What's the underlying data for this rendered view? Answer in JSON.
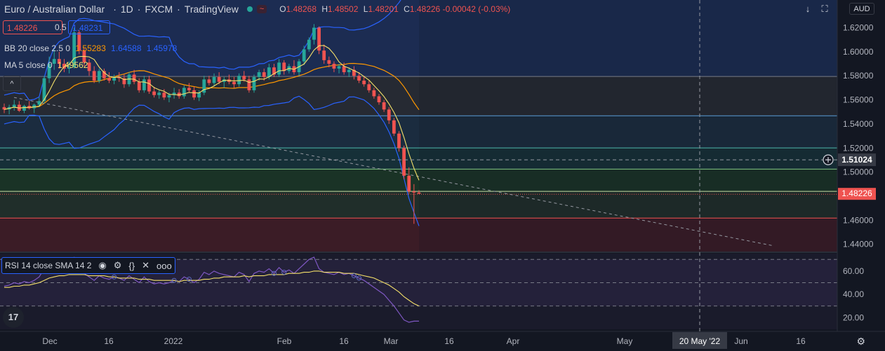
{
  "header": {
    "symbol": "Euro / Australian Dollar",
    "interval": "1D",
    "exchange": "FXCM",
    "source": "TradingView",
    "wave_icon": "~",
    "o_label": "O",
    "o_value": "1.48268",
    "h_label": "H",
    "h_value": "1.48502",
    "l_label": "L",
    "l_value": "1.48201",
    "c_label": "C",
    "c_value": "1.48226",
    "change": "-0.00042 (-0.03%)"
  },
  "quote": {
    "bid": "1.48226",
    "spread": "0.5",
    "ask": "1.48231"
  },
  "indicators": {
    "bb": {
      "label": "BB 20 close 2.5 0",
      "basis": "1.55283",
      "upper": "1.64588",
      "lower": "1.45978"
    },
    "ma": {
      "label": "MA 5 close 0",
      "value": "1.49562"
    },
    "rsi": {
      "label": "RSI 14 close SMA 14 2"
    }
  },
  "controls": {
    "currency": "AUD",
    "collapse": "^",
    "more": "ooo",
    "logo": "17"
  },
  "colors": {
    "up": "#26a69a",
    "down": "#ef5350",
    "bb_basis": "#ff9800",
    "bb_band": "#2962ff",
    "ma": "#f5e16a",
    "rsi": "#7e57c2",
    "rsi_ma": "#f5e16a"
  },
  "chart_data": [
    {
      "type": "candlestick",
      "x_tick_labels": [
        "Dec",
        "16",
        "2022",
        "Feb",
        "16",
        "Mar",
        "16",
        "Apr",
        "May",
        "20 May '22",
        "Jun",
        "16"
      ],
      "y_tick_labels": [
        "1.62000",
        "1.60000",
        "1.58000",
        "1.56000",
        "1.54000",
        "1.52000",
        "1.50000",
        "1.48000",
        "1.46000",
        "1.44000"
      ],
      "ylim": [
        1.434,
        1.643
      ],
      "last_price": "1.48226",
      "crosshair_price": "1.51024",
      "crosshair_date": "20 May '22",
      "horizontal_levels": [
        1.5795,
        1.5468,
        1.5201,
        1.5025,
        1.484,
        1.4618
      ],
      "zones": [
        {
          "from": 1.5795,
          "to": 1.643,
          "color": "#1c2c52"
        },
        {
          "from": 1.5468,
          "to": 1.5795,
          "color": "#262a33"
        },
        {
          "from": 1.5201,
          "to": 1.5468,
          "color": "#1b2c3f"
        },
        {
          "from": 1.5025,
          "to": 1.5201,
          "color": "#163038"
        },
        {
          "from": 1.484,
          "to": 1.5025,
          "color": "#1a3326"
        },
        {
          "from": 1.4618,
          "to": 1.484,
          "color": "#202e2a"
        },
        {
          "from": 1.434,
          "to": 1.4618,
          "color": "#3b1c26"
        }
      ],
      "trendline": [
        [
          1.562,
          1.439
        ]
      ],
      "candles": [
        [
          1.554,
          1.557,
          1.549,
          1.552
        ],
        [
          1.552,
          1.556,
          1.548,
          1.554
        ],
        [
          1.554,
          1.56,
          1.551,
          1.556
        ],
        [
          1.556,
          1.559,
          1.55,
          1.551
        ],
        [
          1.551,
          1.556,
          1.549,
          1.555
        ],
        [
          1.555,
          1.559,
          1.552,
          1.553
        ],
        [
          1.553,
          1.557,
          1.549,
          1.556
        ],
        [
          1.556,
          1.562,
          1.554,
          1.559
        ],
        [
          1.559,
          1.58,
          1.557,
          1.578
        ],
        [
          1.578,
          1.596,
          1.574,
          1.59
        ],
        [
          1.59,
          1.602,
          1.585,
          1.594
        ],
        [
          1.594,
          1.6,
          1.586,
          1.59
        ],
        [
          1.59,
          1.594,
          1.583,
          1.586
        ],
        [
          1.586,
          1.592,
          1.582,
          1.587
        ],
        [
          1.587,
          1.62,
          1.586,
          1.616
        ],
        [
          1.616,
          1.618,
          1.598,
          1.601
        ],
        [
          1.601,
          1.603,
          1.588,
          1.591
        ],
        [
          1.591,
          1.594,
          1.58,
          1.584
        ],
        [
          1.584,
          1.588,
          1.574,
          1.576
        ],
        [
          1.576,
          1.586,
          1.574,
          1.584
        ],
        [
          1.584,
          1.586,
          1.576,
          1.578
        ],
        [
          1.578,
          1.583,
          1.574,
          1.576
        ],
        [
          1.576,
          1.581,
          1.573,
          1.579
        ],
        [
          1.579,
          1.583,
          1.575,
          1.578
        ],
        [
          1.578,
          1.581,
          1.57,
          1.573
        ],
        [
          1.573,
          1.583,
          1.571,
          1.581
        ],
        [
          1.581,
          1.585,
          1.573,
          1.575
        ],
        [
          1.575,
          1.578,
          1.566,
          1.568
        ],
        [
          1.568,
          1.58,
          1.566,
          1.577
        ],
        [
          1.577,
          1.58,
          1.565,
          1.567
        ],
        [
          1.567,
          1.571,
          1.562,
          1.564
        ],
        [
          1.564,
          1.568,
          1.561,
          1.566
        ],
        [
          1.566,
          1.569,
          1.56,
          1.562
        ],
        [
          1.562,
          1.566,
          1.558,
          1.564
        ],
        [
          1.564,
          1.57,
          1.561,
          1.566
        ],
        [
          1.566,
          1.569,
          1.561,
          1.563
        ],
        [
          1.563,
          1.572,
          1.561,
          1.57
        ],
        [
          1.57,
          1.574,
          1.566,
          1.568
        ],
        [
          1.568,
          1.571,
          1.56,
          1.562
        ],
        [
          1.562,
          1.568,
          1.559,
          1.566
        ],
        [
          1.566,
          1.58,
          1.564,
          1.577
        ],
        [
          1.577,
          1.58,
          1.572,
          1.574
        ],
        [
          1.574,
          1.582,
          1.571,
          1.579
        ],
        [
          1.579,
          1.583,
          1.573,
          1.575
        ],
        [
          1.575,
          1.579,
          1.57,
          1.577
        ],
        [
          1.577,
          1.581,
          1.573,
          1.575
        ],
        [
          1.575,
          1.579,
          1.57,
          1.573
        ],
        [
          1.573,
          1.582,
          1.571,
          1.58
        ],
        [
          1.58,
          1.584,
          1.575,
          1.577
        ],
        [
          1.577,
          1.58,
          1.566,
          1.568
        ],
        [
          1.568,
          1.581,
          1.566,
          1.579
        ],
        [
          1.579,
          1.585,
          1.576,
          1.583
        ],
        [
          1.583,
          1.586,
          1.576,
          1.579
        ],
        [
          1.579,
          1.59,
          1.577,
          1.587
        ],
        [
          1.587,
          1.59,
          1.579,
          1.581
        ],
        [
          1.581,
          1.594,
          1.579,
          1.591
        ],
        [
          1.591,
          1.593,
          1.581,
          1.584
        ],
        [
          1.584,
          1.59,
          1.582,
          1.588
        ],
        [
          1.588,
          1.593,
          1.581,
          1.583
        ],
        [
          1.583,
          1.594,
          1.58,
          1.592
        ],
        [
          1.592,
          1.605,
          1.589,
          1.602
        ],
        [
          1.602,
          1.612,
          1.6,
          1.61
        ],
        [
          1.61,
          1.623,
          1.606,
          1.62
        ],
        [
          1.62,
          1.621,
          1.598,
          1.601
        ],
        [
          1.601,
          1.606,
          1.59,
          1.593
        ],
        [
          1.593,
          1.596,
          1.587,
          1.59
        ],
        [
          1.59,
          1.592,
          1.583,
          1.586
        ],
        [
          1.586,
          1.59,
          1.582,
          1.588
        ],
        [
          1.588,
          1.591,
          1.581,
          1.583
        ],
        [
          1.583,
          1.587,
          1.579,
          1.585
        ],
        [
          1.585,
          1.588,
          1.577,
          1.58
        ],
        [
          1.58,
          1.583,
          1.574,
          1.576
        ],
        [
          1.576,
          1.58,
          1.571,
          1.573
        ],
        [
          1.573,
          1.576,
          1.566,
          1.568
        ],
        [
          1.568,
          1.57,
          1.561,
          1.563
        ],
        [
          1.563,
          1.565,
          1.556,
          1.558
        ],
        [
          1.558,
          1.56,
          1.55,
          1.552
        ],
        [
          1.552,
          1.554,
          1.54,
          1.543
        ],
        [
          1.543,
          1.545,
          1.53,
          1.532
        ],
        [
          1.532,
          1.534,
          1.517,
          1.52
        ],
        [
          1.52,
          1.522,
          1.494,
          1.497
        ],
        [
          1.497,
          1.504,
          1.482,
          1.484
        ],
        [
          1.484,
          1.49,
          1.457,
          1.483
        ],
        [
          1.483,
          1.485,
          1.482,
          1.482
        ]
      ]
    },
    {
      "type": "line",
      "title": "RSI",
      "y_tick_labels": [
        "60.00",
        "40.00",
        "20.00"
      ],
      "ylim": [
        10,
        75
      ],
      "levels": [
        70,
        50,
        30
      ],
      "rsi": [
        47,
        48,
        50,
        49,
        51,
        50,
        52,
        55,
        62,
        66,
        68,
        64,
        60,
        61,
        70,
        63,
        58,
        55,
        52,
        56,
        54,
        53,
        55,
        54,
        52,
        56,
        53,
        50,
        55,
        51,
        49,
        50,
        49,
        50,
        52,
        51,
        55,
        53,
        50,
        53,
        59,
        57,
        60,
        58,
        57,
        56,
        55,
        59,
        57,
        51,
        58,
        60,
        59,
        62,
        58,
        63,
        59,
        61,
        58,
        62,
        66,
        70,
        72,
        62,
        59,
        58,
        57,
        59,
        57,
        58,
        56,
        54,
        52,
        49,
        46,
        43,
        40,
        35,
        30,
        24,
        18,
        16,
        17,
        17
      ],
      "rsi_ma": [
        46,
        46,
        47,
        47,
        48,
        48,
        49,
        50,
        52,
        54,
        55,
        56,
        56,
        57,
        57,
        57,
        57,
        56,
        56,
        56,
        56,
        55,
        55,
        54,
        54,
        54,
        54,
        53,
        53,
        53,
        52,
        52,
        52,
        52,
        52,
        51,
        52,
        52,
        52,
        52,
        53,
        53,
        54,
        54,
        55,
        55,
        55,
        55,
        56,
        55,
        56,
        56,
        56,
        57,
        57,
        57,
        57,
        58,
        58,
        58,
        59,
        59,
        60,
        60,
        59,
        59,
        59,
        59,
        58,
        58,
        58,
        57,
        56,
        55,
        54,
        52,
        50,
        48,
        45,
        42,
        38,
        35,
        32,
        30
      ]
    }
  ]
}
